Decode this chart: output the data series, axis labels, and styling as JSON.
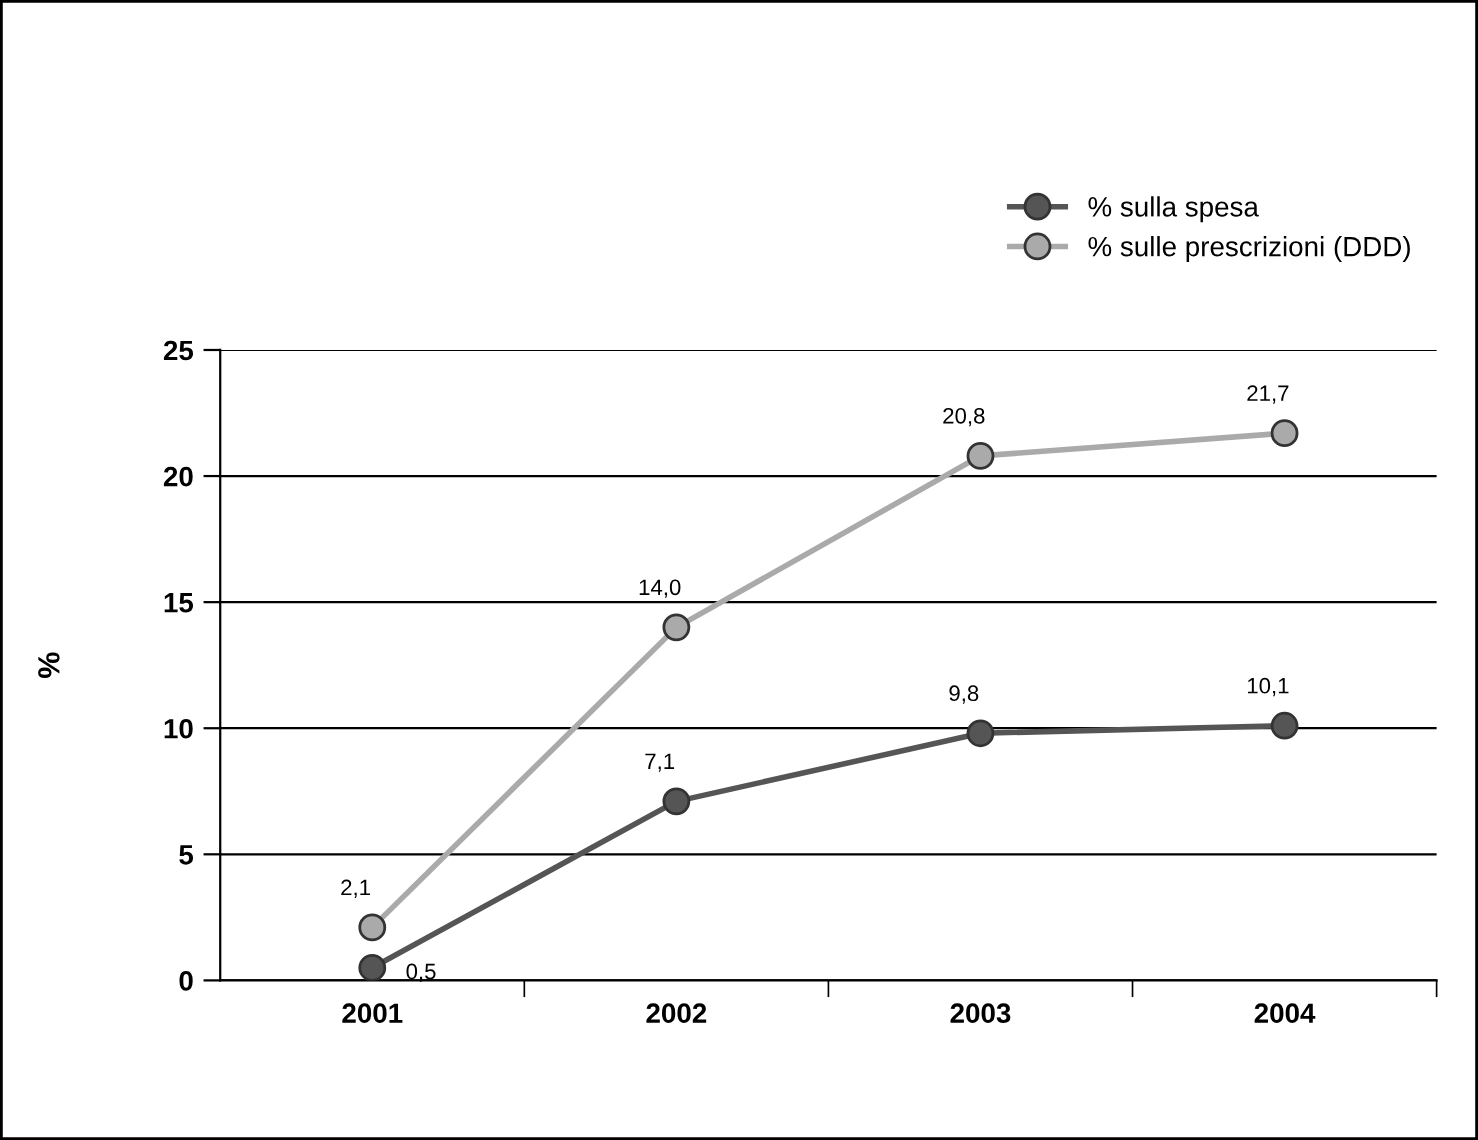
{
  "chart_data": {
    "type": "line",
    "ylabel": "%",
    "categories": [
      "2001",
      "2002",
      "2003",
      "2004"
    ],
    "series": [
      {
        "name": "% sulla spesa",
        "color": "#555555",
        "values": [
          0.5,
          7.1,
          9.8,
          10.1
        ],
        "value_labels": [
          "0,5",
          "7,1",
          "9,8",
          "10,1"
        ]
      },
      {
        "name": "% sulle prescrizioni (DDD)",
        "color": "#aaaaaa",
        "values": [
          2.1,
          14.0,
          20.8,
          21.7
        ],
        "value_labels": [
          "2,1",
          "14,0",
          "20,8",
          "21,7"
        ]
      }
    ],
    "ylim": [
      0,
      25
    ],
    "yticks": [
      0,
      5,
      10,
      15,
      20,
      25
    ],
    "grid": "y",
    "legend": "top right",
    "marker": "circle",
    "line_style": "solid"
  }
}
